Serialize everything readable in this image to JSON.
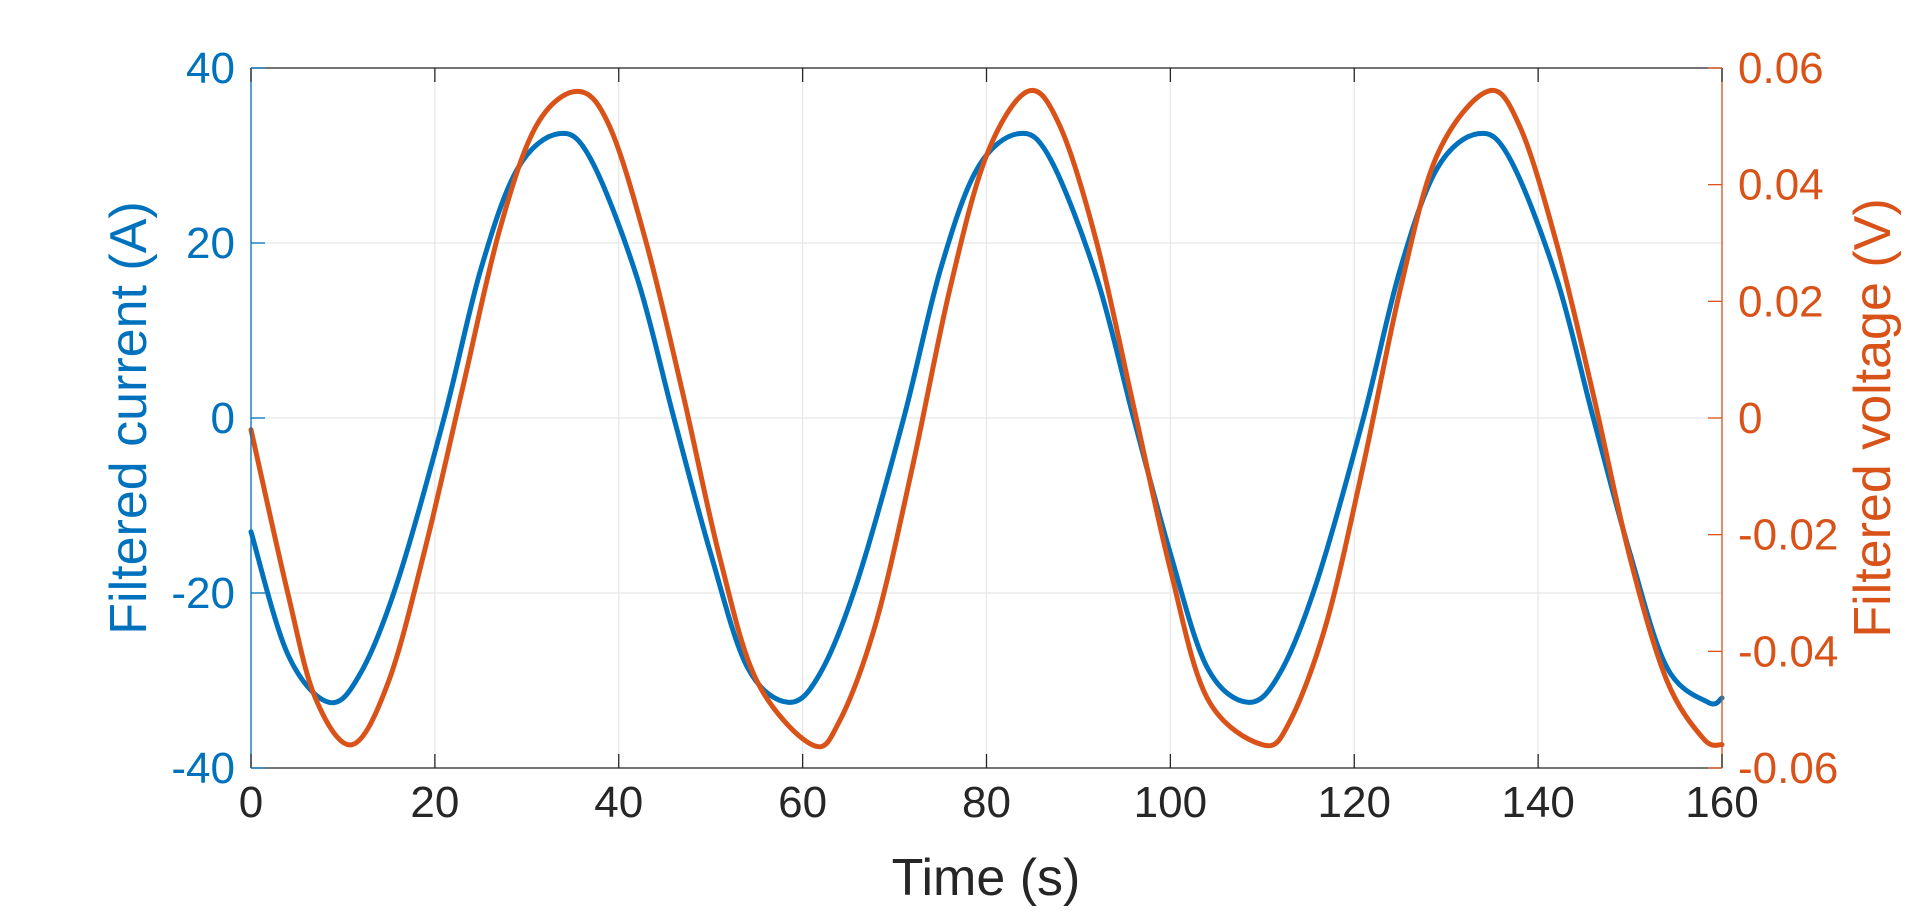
{
  "chart_data": {
    "type": "line",
    "xlabel": "Time (s)",
    "ylabel_left": "Filtered current (A)",
    "ylabel_right": "Filtered voltage (V)",
    "xlim": [
      0,
      160
    ],
    "ylim_left": [
      -40,
      40
    ],
    "ylim_right": [
      -0.06,
      0.06
    ],
    "x_ticks": [
      "0",
      "20",
      "40",
      "60",
      "80",
      "100",
      "120",
      "140",
      "160"
    ],
    "y_ticks_left": [
      "-40",
      "-20",
      "0",
      "20",
      "40"
    ],
    "y_ticks_right": [
      "-0.06",
      "-0.04",
      "-0.02",
      "0",
      "0.02",
      "0.04",
      "0.06"
    ],
    "grid": true,
    "colors": {
      "left_axis": "#0072BD",
      "right_axis": "#D95319",
      "axis_dark": "#262626",
      "grid": "#e6e6e6"
    },
    "series": [
      {
        "axis": "left",
        "color": "#0072BD",
        "x": [
          0,
          4,
          8.5,
          12,
          16,
          21,
          25,
          29,
          33.5,
          37,
          42,
          46,
          50,
          54,
          58.5,
          62,
          66,
          71,
          75,
          79,
          83.5,
          87,
          92,
          96,
          100,
          104,
          108.5,
          112,
          116,
          121,
          125,
          129,
          133.5,
          137,
          142,
          146,
          150,
          154,
          158.5,
          160
        ],
        "y": [
          -13,
          -27,
          -32.5,
          -29,
          -18.5,
          0,
          17,
          28.5,
          32.5,
          29.5,
          16,
          0,
          -15.5,
          -28.5,
          -32.5,
          -29,
          -18.5,
          0,
          17,
          28.5,
          32.5,
          29.5,
          16,
          0,
          -15.5,
          -28.5,
          -32.5,
          -29,
          -18.5,
          0,
          17,
          28.5,
          32.5,
          29.5,
          16,
          0,
          -15.5,
          -28.5,
          -32.5,
          -32
        ]
      },
      {
        "axis": "right",
        "color": "#D95319",
        "x": [
          0,
          4,
          7,
          11,
          15,
          19,
          23,
          27,
          31,
          35.5,
          39,
          43,
          47,
          51,
          55,
          61,
          64,
          68,
          72,
          76,
          80,
          84.5,
          88,
          92,
          96,
          100,
          104,
          110,
          113,
          117,
          121,
          125,
          129,
          134.5,
          138,
          142,
          146,
          150,
          154,
          158,
          160
        ],
        "y": [
          -0.002,
          -0.03,
          -0.048,
          -0.056,
          -0.045,
          -0.022,
          0.005,
          0.032,
          0.05,
          0.056,
          0.05,
          0.03,
          0.004,
          -0.024,
          -0.045,
          -0.056,
          -0.052,
          -0.035,
          -0.008,
          0.022,
          0.045,
          0.056,
          0.05,
          0.03,
          0.002,
          -0.026,
          -0.048,
          -0.056,
          -0.052,
          -0.035,
          -0.008,
          0.022,
          0.045,
          0.056,
          0.05,
          0.03,
          0.004,
          -0.024,
          -0.045,
          -0.055,
          -0.056
        ]
      }
    ]
  }
}
